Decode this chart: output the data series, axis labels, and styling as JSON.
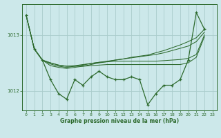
{
  "background_color": "#cce8ea",
  "grid_color": "#aacccc",
  "line_color": "#2d6a2d",
  "title": "Graphe pression niveau de la mer (hPa)",
  "xlim": [
    -0.5,
    23.5
  ],
  "ylim": [
    1011.65,
    1013.55
  ],
  "yticks": [
    1012,
    1013
  ],
  "xticks": [
    0,
    1,
    2,
    3,
    4,
    5,
    6,
    7,
    8,
    9,
    10,
    11,
    12,
    13,
    14,
    15,
    16,
    17,
    18,
    19,
    20,
    21,
    22,
    23
  ],
  "main_y": [
    1013.35,
    1012.75,
    1012.55,
    1012.2,
    1011.95,
    1011.85,
    1012.2,
    1012.1,
    1012.25,
    1012.35,
    1012.25,
    1012.2,
    1012.2,
    1012.25,
    1012.2,
    1011.75,
    1011.95,
    1012.1,
    1012.1,
    1012.2,
    1012.55,
    1013.4,
    1013.1,
    null
  ],
  "smooth1_y": [
    1013.35,
    1012.75,
    1012.55,
    1012.45,
    1012.42,
    1012.4,
    1012.42,
    1012.44,
    1012.47,
    1012.5,
    1012.52,
    1012.55,
    1012.57,
    1012.6,
    1012.62,
    1012.64,
    1012.68,
    1012.72,
    1012.77,
    1012.82,
    1012.88,
    1012.95,
    1013.1,
    null
  ],
  "smooth2_y": [
    1013.35,
    1012.75,
    1012.55,
    1012.48,
    1012.44,
    1012.42,
    1012.44,
    1012.46,
    1012.49,
    1012.51,
    1012.53,
    1012.55,
    1012.57,
    1012.59,
    1012.61,
    1012.63,
    1012.65,
    1012.68,
    1012.72,
    1012.76,
    1012.8,
    1012.88,
    1013.05,
    null
  ],
  "smooth3_y": [
    1013.35,
    1012.75,
    1012.55,
    1012.5,
    1012.46,
    1012.44,
    1012.45,
    1012.47,
    1012.49,
    1012.51,
    1012.52,
    1012.53,
    1012.53,
    1012.53,
    1012.53,
    1012.53,
    1012.53,
    1012.54,
    1012.55,
    1012.56,
    1012.58,
    1012.65,
    1013.0,
    null
  ],
  "smooth4_y": [
    null,
    1012.75,
    1012.55,
    1012.5,
    1012.46,
    1012.44,
    1012.44,
    1012.44,
    1012.45,
    1012.46,
    1012.47,
    1012.47,
    1012.47,
    1012.47,
    1012.47,
    1012.47,
    1012.47,
    1012.47,
    1012.47,
    1012.47,
    1012.5,
    1012.6,
    1012.97,
    null
  ]
}
